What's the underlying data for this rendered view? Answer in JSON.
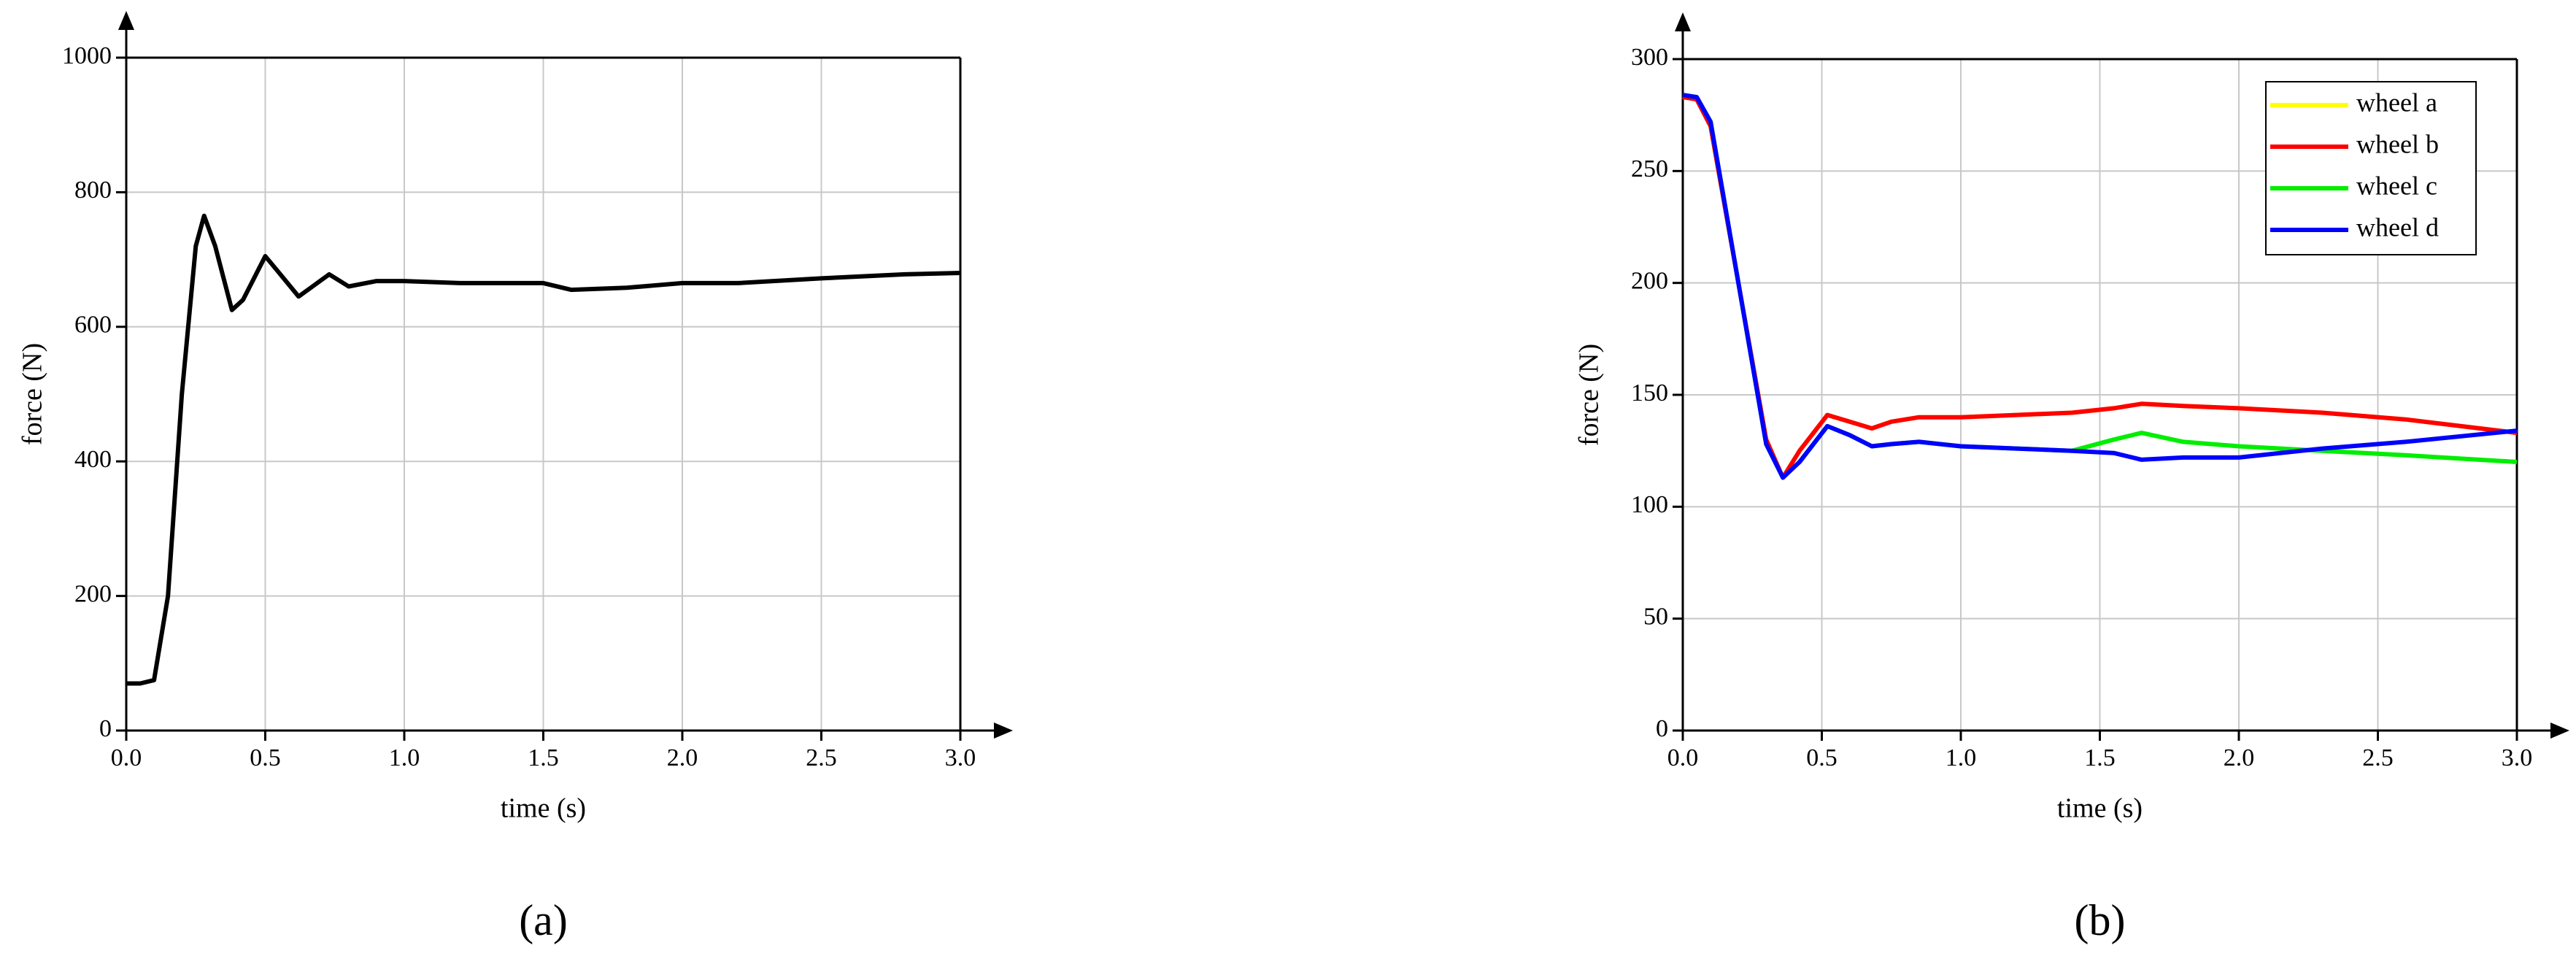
{
  "chart_data": [
    {
      "type": "line",
      "caption": "(a)",
      "xlabel": "time (s)",
      "ylabel": "force (N)",
      "x": [
        0,
        0.05,
        0.1,
        0.15,
        0.2,
        0.25,
        0.28,
        0.32,
        0.38,
        0.42,
        0.5,
        0.55,
        0.62,
        0.67,
        0.73,
        0.8,
        0.9,
        1.0,
        1.2,
        1.5,
        1.6,
        1.8,
        2.0,
        2.2,
        2.5,
        2.8,
        3.0
      ],
      "values": [
        70,
        70,
        75,
        200,
        500,
        720,
        765,
        720,
        625,
        640,
        705,
        680,
        645,
        660,
        678,
        660,
        668,
        668,
        665,
        665,
        655,
        658,
        665,
        665,
        672,
        678,
        680
      ],
      "color": "#000000",
      "xlim": [
        0,
        3
      ],
      "ylim": [
        0,
        1000
      ],
      "xticks": [
        {
          "value": 0,
          "label": "0.0"
        },
        {
          "value": 0.5,
          "label": "0.5"
        },
        {
          "value": 1,
          "label": "1.0"
        },
        {
          "value": 1.5,
          "label": "1.5"
        },
        {
          "value": 2,
          "label": "2.0"
        },
        {
          "value": 2.5,
          "label": "2.5"
        },
        {
          "value": 3,
          "label": "3.0"
        }
      ],
      "yticks": [
        0,
        200,
        400,
        600,
        800,
        1000
      ],
      "grid": true
    },
    {
      "type": "line",
      "caption": "(b)",
      "xlabel": "time (s)",
      "ylabel": "force (N)",
      "x": [
        0,
        0.05,
        0.1,
        0.2,
        0.3,
        0.36,
        0.42,
        0.52,
        0.6,
        0.68,
        0.75,
        0.85,
        1.0,
        1.2,
        1.4,
        1.55,
        1.65,
        1.8,
        2.0,
        2.3,
        2.6,
        3.0
      ],
      "series": [
        {
          "name": "wheel a",
          "color": "#ffff00",
          "values": [
            283,
            282,
            270,
            200,
            130,
            113,
            125,
            141,
            138,
            135,
            138,
            140,
            140,
            141,
            142,
            144,
            146,
            145,
            144,
            142,
            139,
            133
          ]
        },
        {
          "name": "wheel b",
          "color": "#ff0000",
          "values": [
            283,
            282,
            270,
            200,
            130,
            113,
            125,
            141,
            138,
            135,
            138,
            140,
            140,
            141,
            142,
            144,
            146,
            145,
            144,
            142,
            139,
            133
          ]
        },
        {
          "name": "wheel c",
          "color": "#00ee00",
          "values": [
            284,
            283,
            272,
            200,
            128,
            113,
            120,
            136,
            132,
            127,
            128,
            129,
            127,
            126,
            125,
            130,
            133,
            129,
            127,
            125,
            123,
            120
          ]
        },
        {
          "name": "wheel d",
          "color": "#0000ff",
          "values": [
            284,
            283,
            272,
            200,
            128,
            113,
            120,
            136,
            132,
            127,
            128,
            129,
            127,
            126,
            125,
            124,
            121,
            122,
            122,
            126,
            129,
            134
          ]
        }
      ],
      "xlim": [
        0,
        3
      ],
      "ylim": [
        0,
        300
      ],
      "xticks": [
        {
          "value": 0,
          "label": "0.0"
        },
        {
          "value": 0.5,
          "label": "0.5"
        },
        {
          "value": 1,
          "label": "1.0"
        },
        {
          "value": 1.5,
          "label": "1.5"
        },
        {
          "value": 2,
          "label": "2.0"
        },
        {
          "value": 2.5,
          "label": "2.5"
        },
        {
          "value": 3,
          "label": "3.0"
        }
      ],
      "yticks": [
        0,
        50,
        100,
        150,
        200,
        250,
        300
      ],
      "grid": true,
      "legend": "upper right"
    }
  ]
}
